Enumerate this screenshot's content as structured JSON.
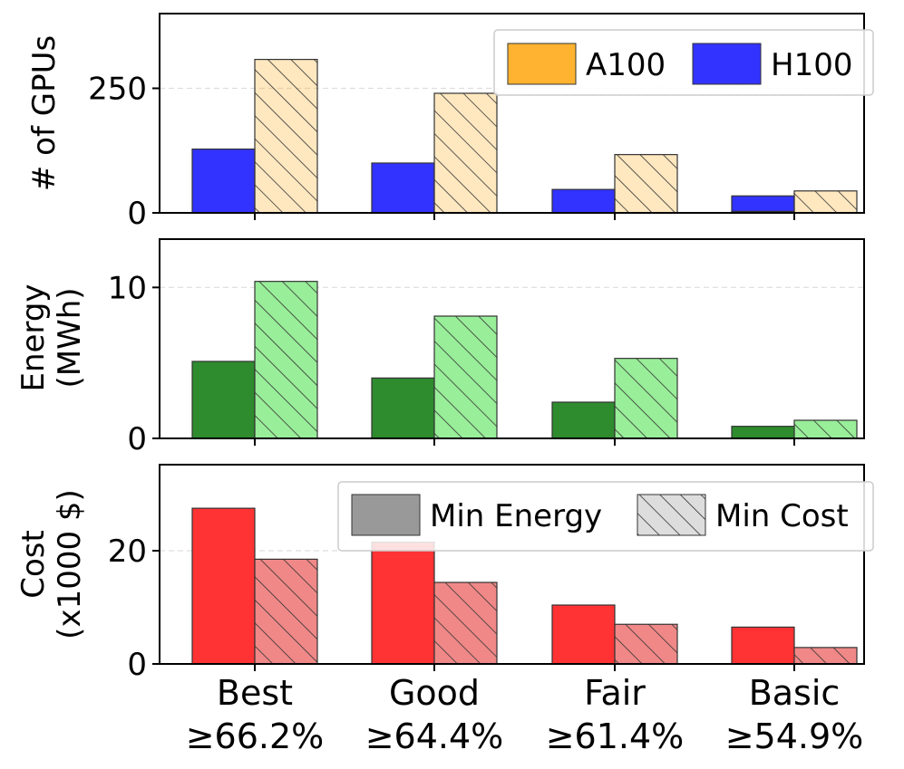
{
  "chart_data": {
    "type": "bar",
    "categories": [
      {
        "name": "Best",
        "threshold": "≥66.2%"
      },
      {
        "name": "Good",
        "threshold": "≥64.4%"
      },
      {
        "name": "Fair",
        "threshold": "≥61.4%"
      },
      {
        "name": "Basic",
        "threshold": "≥54.9%"
      }
    ],
    "style_legend": [
      {
        "label": "Min Energy",
        "hatched": false
      },
      {
        "label": "Min Cost",
        "hatched": true
      }
    ],
    "panels": [
      {
        "id": "gpus",
        "ylabel": [
          "# of GPUs"
        ],
        "ylim": [
          0,
          400
        ],
        "yticks": [
          0,
          250
        ],
        "yticklabels": [
          "0",
          "250"
        ],
        "grid": true,
        "legend": [
          {
            "label": "A100",
            "color": "#ffb330"
          },
          {
            "label": "H100",
            "color": "#3333ff"
          }
        ],
        "series": [
          {
            "name": "Min Energy",
            "hatched": false,
            "segments": [
              {
                "name": "A100",
                "values": [
                  0,
                  0,
                  0,
                  3
                ]
              },
              {
                "name": "H100",
                "values": [
                  128,
                  100,
                  47,
                  31
                ]
              }
            ]
          },
          {
            "name": "Min Cost",
            "hatched": true,
            "segments": [
              {
                "name": "A100",
                "values": [
                  308,
                  240,
                  117,
                  44
                ]
              }
            ]
          }
        ]
      },
      {
        "id": "energy",
        "ylabel": [
          "Energy",
          "(MWh)"
        ],
        "ylim": [
          0,
          13.2
        ],
        "yticks": [
          0,
          10
        ],
        "yticklabels": [
          "0",
          "10"
        ],
        "grid": true,
        "series": [
          {
            "name": "Min Energy",
            "hatched": false,
            "color": "#2e8b2e",
            "values": [
              5.1,
              4.0,
              2.4,
              0.8
            ]
          },
          {
            "name": "Min Cost",
            "hatched": true,
            "color": "#99ee99",
            "values": [
              10.4,
              8.1,
              5.3,
              1.2
            ]
          }
        ]
      },
      {
        "id": "cost",
        "ylabel": [
          "Cost",
          "(x1000 $)"
        ],
        "ylim": [
          0,
          35.2
        ],
        "yticks": [
          0,
          20
        ],
        "yticklabels": [
          "0",
          "20"
        ],
        "grid": true,
        "series": [
          {
            "name": "Min Energy",
            "hatched": false,
            "color": "#ff3333",
            "values": [
              27.5,
              21.5,
              10.4,
              6.5
            ]
          },
          {
            "name": "Min Cost",
            "hatched": true,
            "color": "#f08888",
            "values": [
              18.5,
              14.4,
              7.0,
              2.9
            ]
          }
        ]
      }
    ]
  }
}
